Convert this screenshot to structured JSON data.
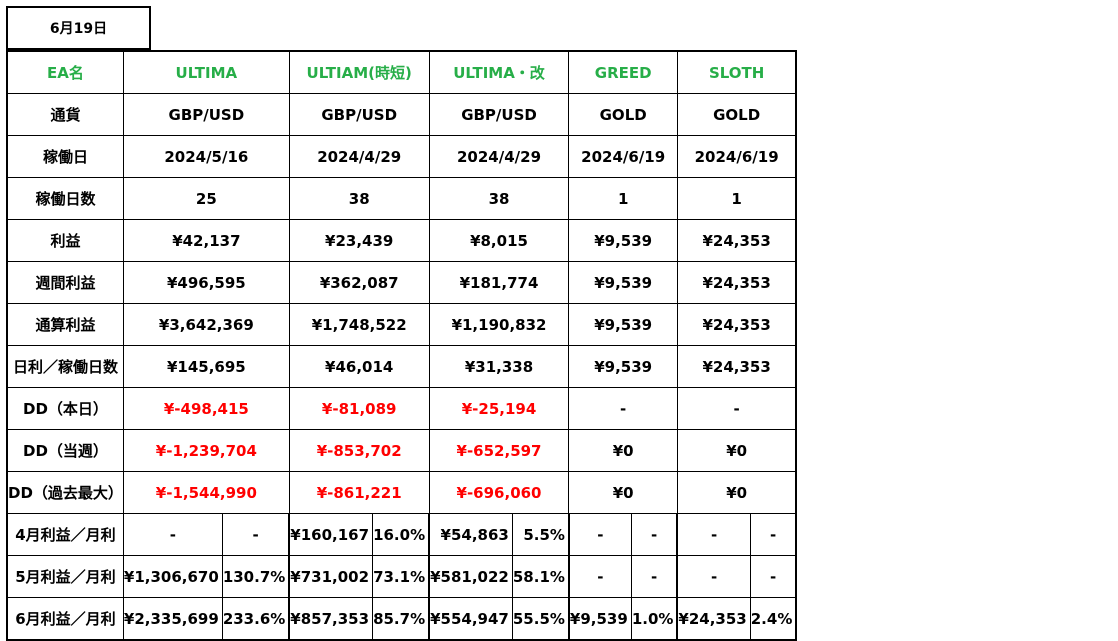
{
  "date": "6月19日",
  "rows": [
    {
      "label": "EA名",
      "green": true,
      "values": [
        "ULTIMA",
        "ULTIAM(時短)",
        "ULTIMA・改",
        "GREED",
        "SLOTH"
      ]
    },
    {
      "label": "通貨",
      "values": [
        "GBP/USD",
        "GBP/USD",
        "GBP/USD",
        "GOLD",
        "GOLD"
      ]
    },
    {
      "label": "稼働日",
      "values": [
        "2024/5/16",
        "2024/4/29",
        "2024/4/29",
        "2024/6/19",
        "2024/6/19"
      ]
    },
    {
      "label": "稼働日数",
      "values": [
        "25",
        "38",
        "38",
        "1",
        "1"
      ]
    },
    {
      "label": "利益",
      "values": [
        "¥42,137",
        "¥23,439",
        "¥8,015",
        "¥9,539",
        "¥24,353"
      ]
    },
    {
      "label": "週間利益",
      "values": [
        "¥496,595",
        "¥362,087",
        "¥181,774",
        "¥9,539",
        "¥24,353"
      ]
    },
    {
      "label": "通算利益",
      "values": [
        "¥3,642,369",
        "¥1,748,522",
        "¥1,190,832",
        "¥9,539",
        "¥24,353"
      ]
    },
    {
      "label": "日利／稼働日数",
      "values": [
        "¥145,695",
        "¥46,014",
        "¥31,338",
        "¥9,539",
        "¥24,353"
      ]
    },
    {
      "label": "DD（本日）",
      "values": [
        "¥-498,415",
        "¥-81,089",
        "¥-25,194",
        "-",
        "-"
      ],
      "red": [
        true,
        true,
        true,
        false,
        false
      ]
    },
    {
      "label": "DD（当週）",
      "values": [
        "¥-1,239,704",
        "¥-853,702",
        "¥-652,597",
        "¥0",
        "¥0"
      ],
      "red": [
        true,
        true,
        true,
        false,
        false
      ]
    },
    {
      "label": "DD（過去最大）",
      "values": [
        "¥-1,544,990",
        "¥-861,221",
        "¥-696,060",
        "¥0",
        "¥0"
      ],
      "red": [
        true,
        true,
        true,
        false,
        false
      ]
    }
  ],
  "monthly": [
    {
      "label": "4月利益／月利",
      "cells": [
        [
          "-",
          "-"
        ],
        [
          "¥160,167",
          "16.0%"
        ],
        [
          "¥54,863",
          "5.5%"
        ],
        [
          "-",
          "-"
        ],
        [
          "-",
          "-"
        ]
      ]
    },
    {
      "label": "5月利益／月利",
      "cells": [
        [
          "¥1,306,670",
          "130.7%"
        ],
        [
          "¥731,002",
          "73.1%"
        ],
        [
          "¥581,022",
          "58.1%"
        ],
        [
          "-",
          "-"
        ],
        [
          "-",
          "-"
        ]
      ]
    },
    {
      "label": "6月利益／月利",
      "cells": [
        [
          "¥2,335,699",
          "233.6%"
        ],
        [
          "¥857,353",
          "85.7%"
        ],
        [
          "¥554,947",
          "55.5%"
        ],
        [
          "¥9,539",
          "1.0%"
        ],
        [
          "¥24,353",
          "2.4%"
        ]
      ]
    }
  ],
  "colors": {
    "green": "#27ae48",
    "red": "#ff0000"
  }
}
